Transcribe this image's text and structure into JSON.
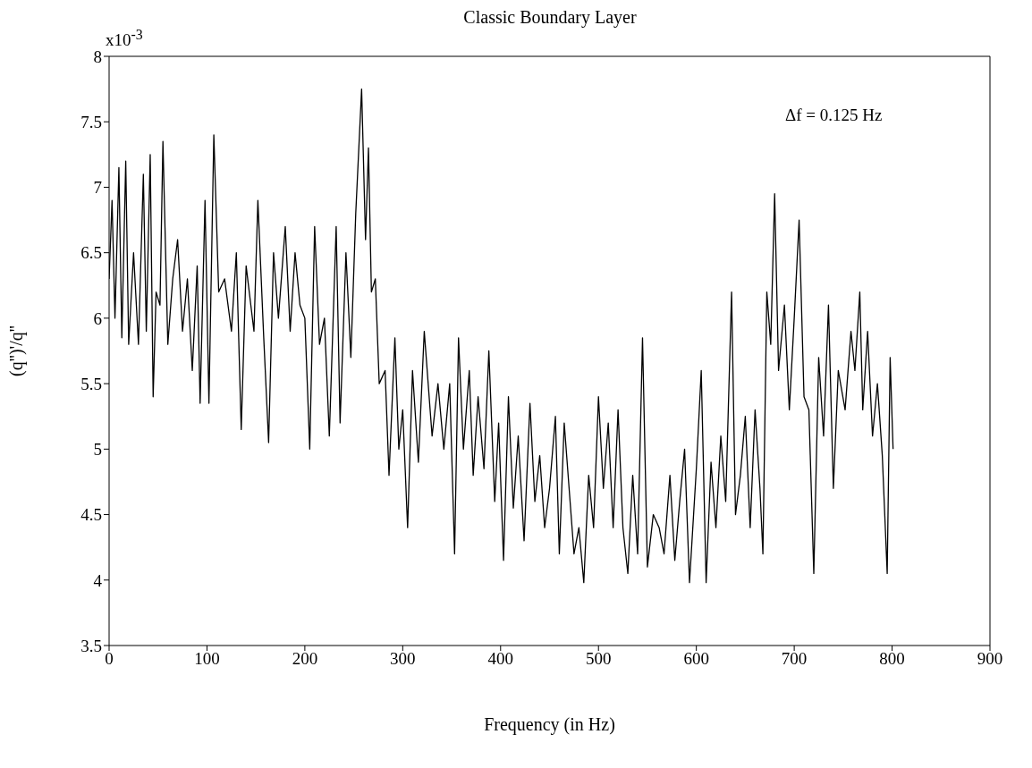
{
  "chart_data": {
    "type": "line",
    "title": "Classic Boundary Layer",
    "xlabel": "Frequency (in Hz)",
    "ylabel": "(q'')'/q''",
    "annotations": [
      "x10$^{-3}$",
      "Δf = 0.125 Hz"
    ],
    "xlim": [
      0,
      900
    ],
    "xticks": [
      0,
      100,
      200,
      300,
      400,
      500,
      600,
      700,
      800,
      900
    ],
    "ylim": [
      3.5,
      8
    ],
    "yticks": [
      3.5,
      4,
      4.5,
      5,
      5.5,
      6,
      6.5,
      7,
      7.5,
      8
    ],
    "grid": false,
    "marker": "none",
    "line_style": "solid",
    "series": [
      {
        "color": "#000000",
        "x": [
          0,
          3,
          6,
          10,
          13,
          17,
          20,
          25,
          30,
          35,
          38,
          42,
          45,
          48,
          52,
          55,
          60,
          65,
          70,
          75,
          80,
          85,
          90,
          93,
          98,
          102,
          107,
          112,
          118,
          125,
          130,
          135,
          140,
          148,
          152,
          158,
          163,
          168,
          173,
          180,
          185,
          190,
          195,
          200,
          205,
          210,
          215,
          220,
          225,
          232,
          236,
          242,
          247,
          252,
          258,
          262,
          265,
          268,
          272,
          276,
          282,
          286,
          292,
          296,
          300,
          305,
          310,
          316,
          322,
          330,
          336,
          342,
          348,
          353,
          357,
          362,
          368,
          372,
          377,
          383,
          388,
          394,
          398,
          403,
          408,
          413,
          418,
          424,
          430,
          435,
          440,
          445,
          450,
          456,
          460,
          465,
          470,
          475,
          480,
          485,
          490,
          495,
          500,
          505,
          510,
          515,
          520,
          525,
          530,
          535,
          540,
          545,
          550,
          556,
          562,
          567,
          573,
          578,
          583,
          588,
          593,
          600,
          605,
          610,
          615,
          620,
          625,
          630,
          636,
          640,
          645,
          650,
          655,
          660,
          665,
          668,
          672,
          676,
          680,
          684,
          690,
          695,
          700,
          705,
          710,
          715,
          720,
          725,
          730,
          735,
          740,
          745,
          752,
          758,
          762,
          767,
          770,
          775,
          780,
          785,
          790,
          795,
          798,
          801
        ],
        "values": [
          6.3,
          6.9,
          6.0,
          7.15,
          5.85,
          7.2,
          5.8,
          6.5,
          5.8,
          7.1,
          5.9,
          7.25,
          5.4,
          6.2,
          6.1,
          7.35,
          5.8,
          6.3,
          6.6,
          5.9,
          6.3,
          5.6,
          6.4,
          5.35,
          6.9,
          5.35,
          7.4,
          6.2,
          6.3,
          5.9,
          6.5,
          5.15,
          6.4,
          5.9,
          6.9,
          5.85,
          5.05,
          6.5,
          6.0,
          6.7,
          5.9,
          6.5,
          6.1,
          6.0,
          5.0,
          6.7,
          5.8,
          6.0,
          5.1,
          6.7,
          5.2,
          6.5,
          5.7,
          6.8,
          7.75,
          6.6,
          7.3,
          6.2,
          6.3,
          5.5,
          5.6,
          4.8,
          5.85,
          5.0,
          5.3,
          4.4,
          5.6,
          4.9,
          5.9,
          5.1,
          5.5,
          5.0,
          5.5,
          4.2,
          5.85,
          5.0,
          5.6,
          4.8,
          5.4,
          4.85,
          5.75,
          4.6,
          5.2,
          4.15,
          5.4,
          4.55,
          5.1,
          4.3,
          5.35,
          4.6,
          4.95,
          4.4,
          4.7,
          5.25,
          4.2,
          5.2,
          4.7,
          4.2,
          4.4,
          3.98,
          4.8,
          4.4,
          5.4,
          4.7,
          5.2,
          4.4,
          5.3,
          4.4,
          4.05,
          4.8,
          4.2,
          5.85,
          4.1,
          4.5,
          4.4,
          4.2,
          4.8,
          4.15,
          4.6,
          5.0,
          3.98,
          4.85,
          5.6,
          3.98,
          4.9,
          4.4,
          5.1,
          4.6,
          6.2,
          4.5,
          4.8,
          5.25,
          4.4,
          5.3,
          4.7,
          4.2,
          6.2,
          5.8,
          6.95,
          5.6,
          6.1,
          5.3,
          6.0,
          6.75,
          5.4,
          5.3,
          4.05,
          5.7,
          5.1,
          6.1,
          4.7,
          5.6,
          5.3,
          5.9,
          5.6,
          6.2,
          5.3,
          5.9,
          5.1,
          5.5,
          4.95,
          4.05,
          5.7,
          5.0
        ]
      }
    ]
  }
}
